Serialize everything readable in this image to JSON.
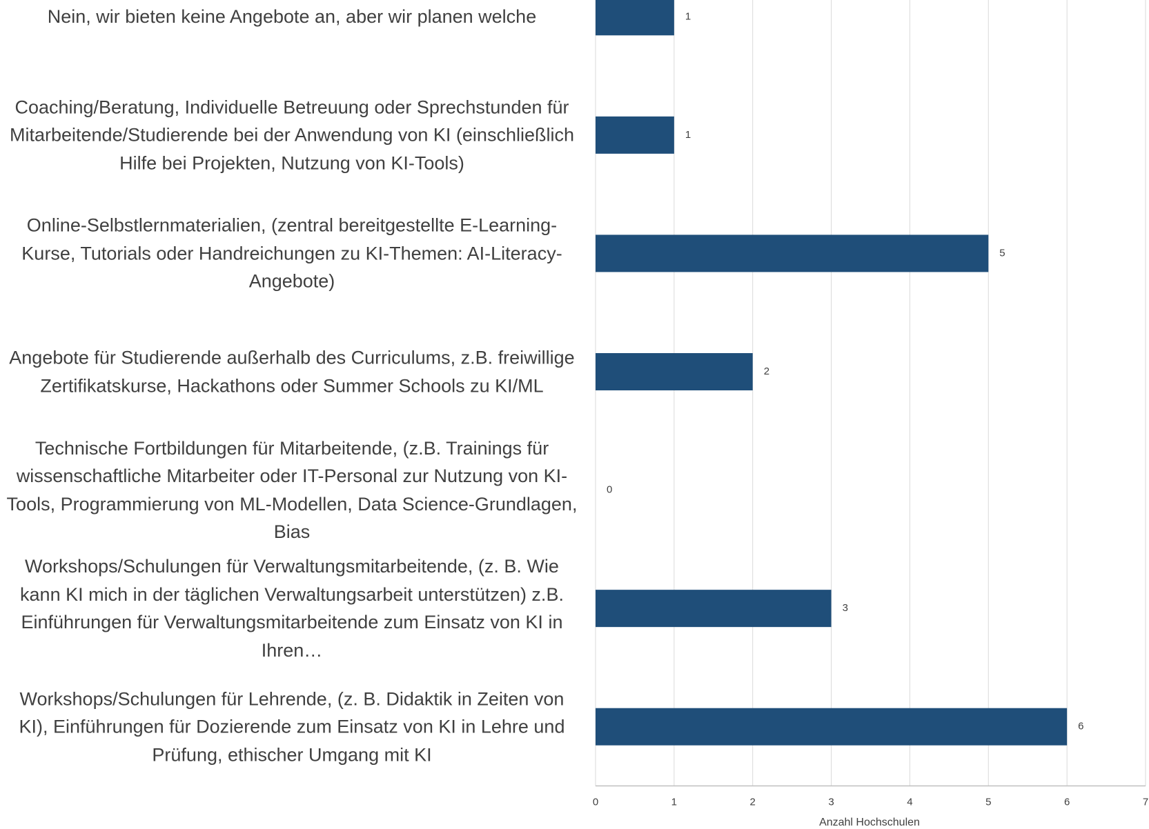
{
  "chart_data": {
    "type": "hbar",
    "categories": [
      "Nein, wir bieten keine Angebote an, aber wir planen welche",
      "Coaching/Beratung,  Individuelle Betreuung oder Sprechstunden für Mitarbeitende/Studierende bei der Anwendung von KI (einschließlich Hilfe bei Projekten, Nutzung von KI-Tools)",
      "Online-Selbstlernmaterialien, (zentral bereitgestellte E-Learning-Kurse, Tutorials oder Handreichungen zu KI-Themen: AI-Literacy-Angebote)",
      "Angebote für Studierende außerhalb des Curriculums, z.B. freiwillige Zertifikatskurse, Hackathons oder Summer Schools zu KI/ML",
      "Technische Fortbildungen für Mitarbeitende, (z.B. Trainings für wissenschaftliche Mitarbeiter oder IT-Personal zur Nutzung von KI-Tools, Programmierung von ML-Modellen, Data Science-Grundlagen, Bias",
      "Workshops/Schulungen für Verwaltungsmitarbeitende, (z. B. Wie kann KI mich in der täglichen Verwaltungsarbeit unterstützen) z.B. Einführungen für Verwaltungsmitarbeitende zum Einsatz von KI in Ihren…",
      "Workshops/Schulungen für Lehrende, (z. B. Didaktik in Zeiten von KI), Einführungen für Dozierende zum Einsatz von KI in Lehre und Prüfung, ethischer Umgang mit KI"
    ],
    "values": [
      1,
      1,
      5,
      2,
      0,
      3,
      6
    ],
    "color": "#1f4e79",
    "xlabel": "Anzahl Hochschulen",
    "xlim": [
      0,
      7
    ],
    "xticks": [
      0,
      1,
      2,
      3,
      4,
      5,
      6,
      7
    ],
    "grid": true
  }
}
